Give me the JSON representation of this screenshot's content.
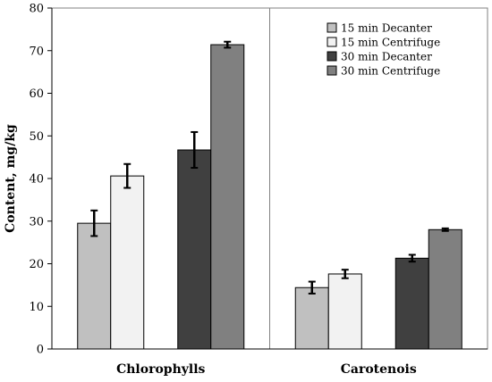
{
  "chart_data": {
    "type": "bar",
    "title": "",
    "xlabel": "",
    "ylabel": "Content, mg/kg",
    "ylim": [
      0,
      80
    ],
    "yticks": [
      0,
      10,
      20,
      30,
      40,
      50,
      60,
      70,
      80
    ],
    "categories": [
      "Chlorophylls",
      "Carotenois"
    ],
    "legend_position": "top-right",
    "grid": false,
    "series": [
      {
        "name": "15 min Decanter",
        "color": "#c0c0c0",
        "values": [
          29.5,
          14.4
        ],
        "errors": [
          3.0,
          1.4
        ]
      },
      {
        "name": "15 min Centrifuge",
        "color": "#f2f2f2",
        "values": [
          40.6,
          17.6
        ],
        "errors": [
          2.8,
          1.0
        ]
      },
      {
        "name": "30 min Decanter",
        "color": "#404040",
        "values": [
          46.7,
          21.3
        ],
        "errors": [
          4.2,
          0.8
        ]
      },
      {
        "name": "30 min Centrifuge",
        "color": "#808080",
        "values": [
          71.4,
          28.0
        ],
        "errors": [
          0.7,
          0.3
        ]
      }
    ]
  }
}
